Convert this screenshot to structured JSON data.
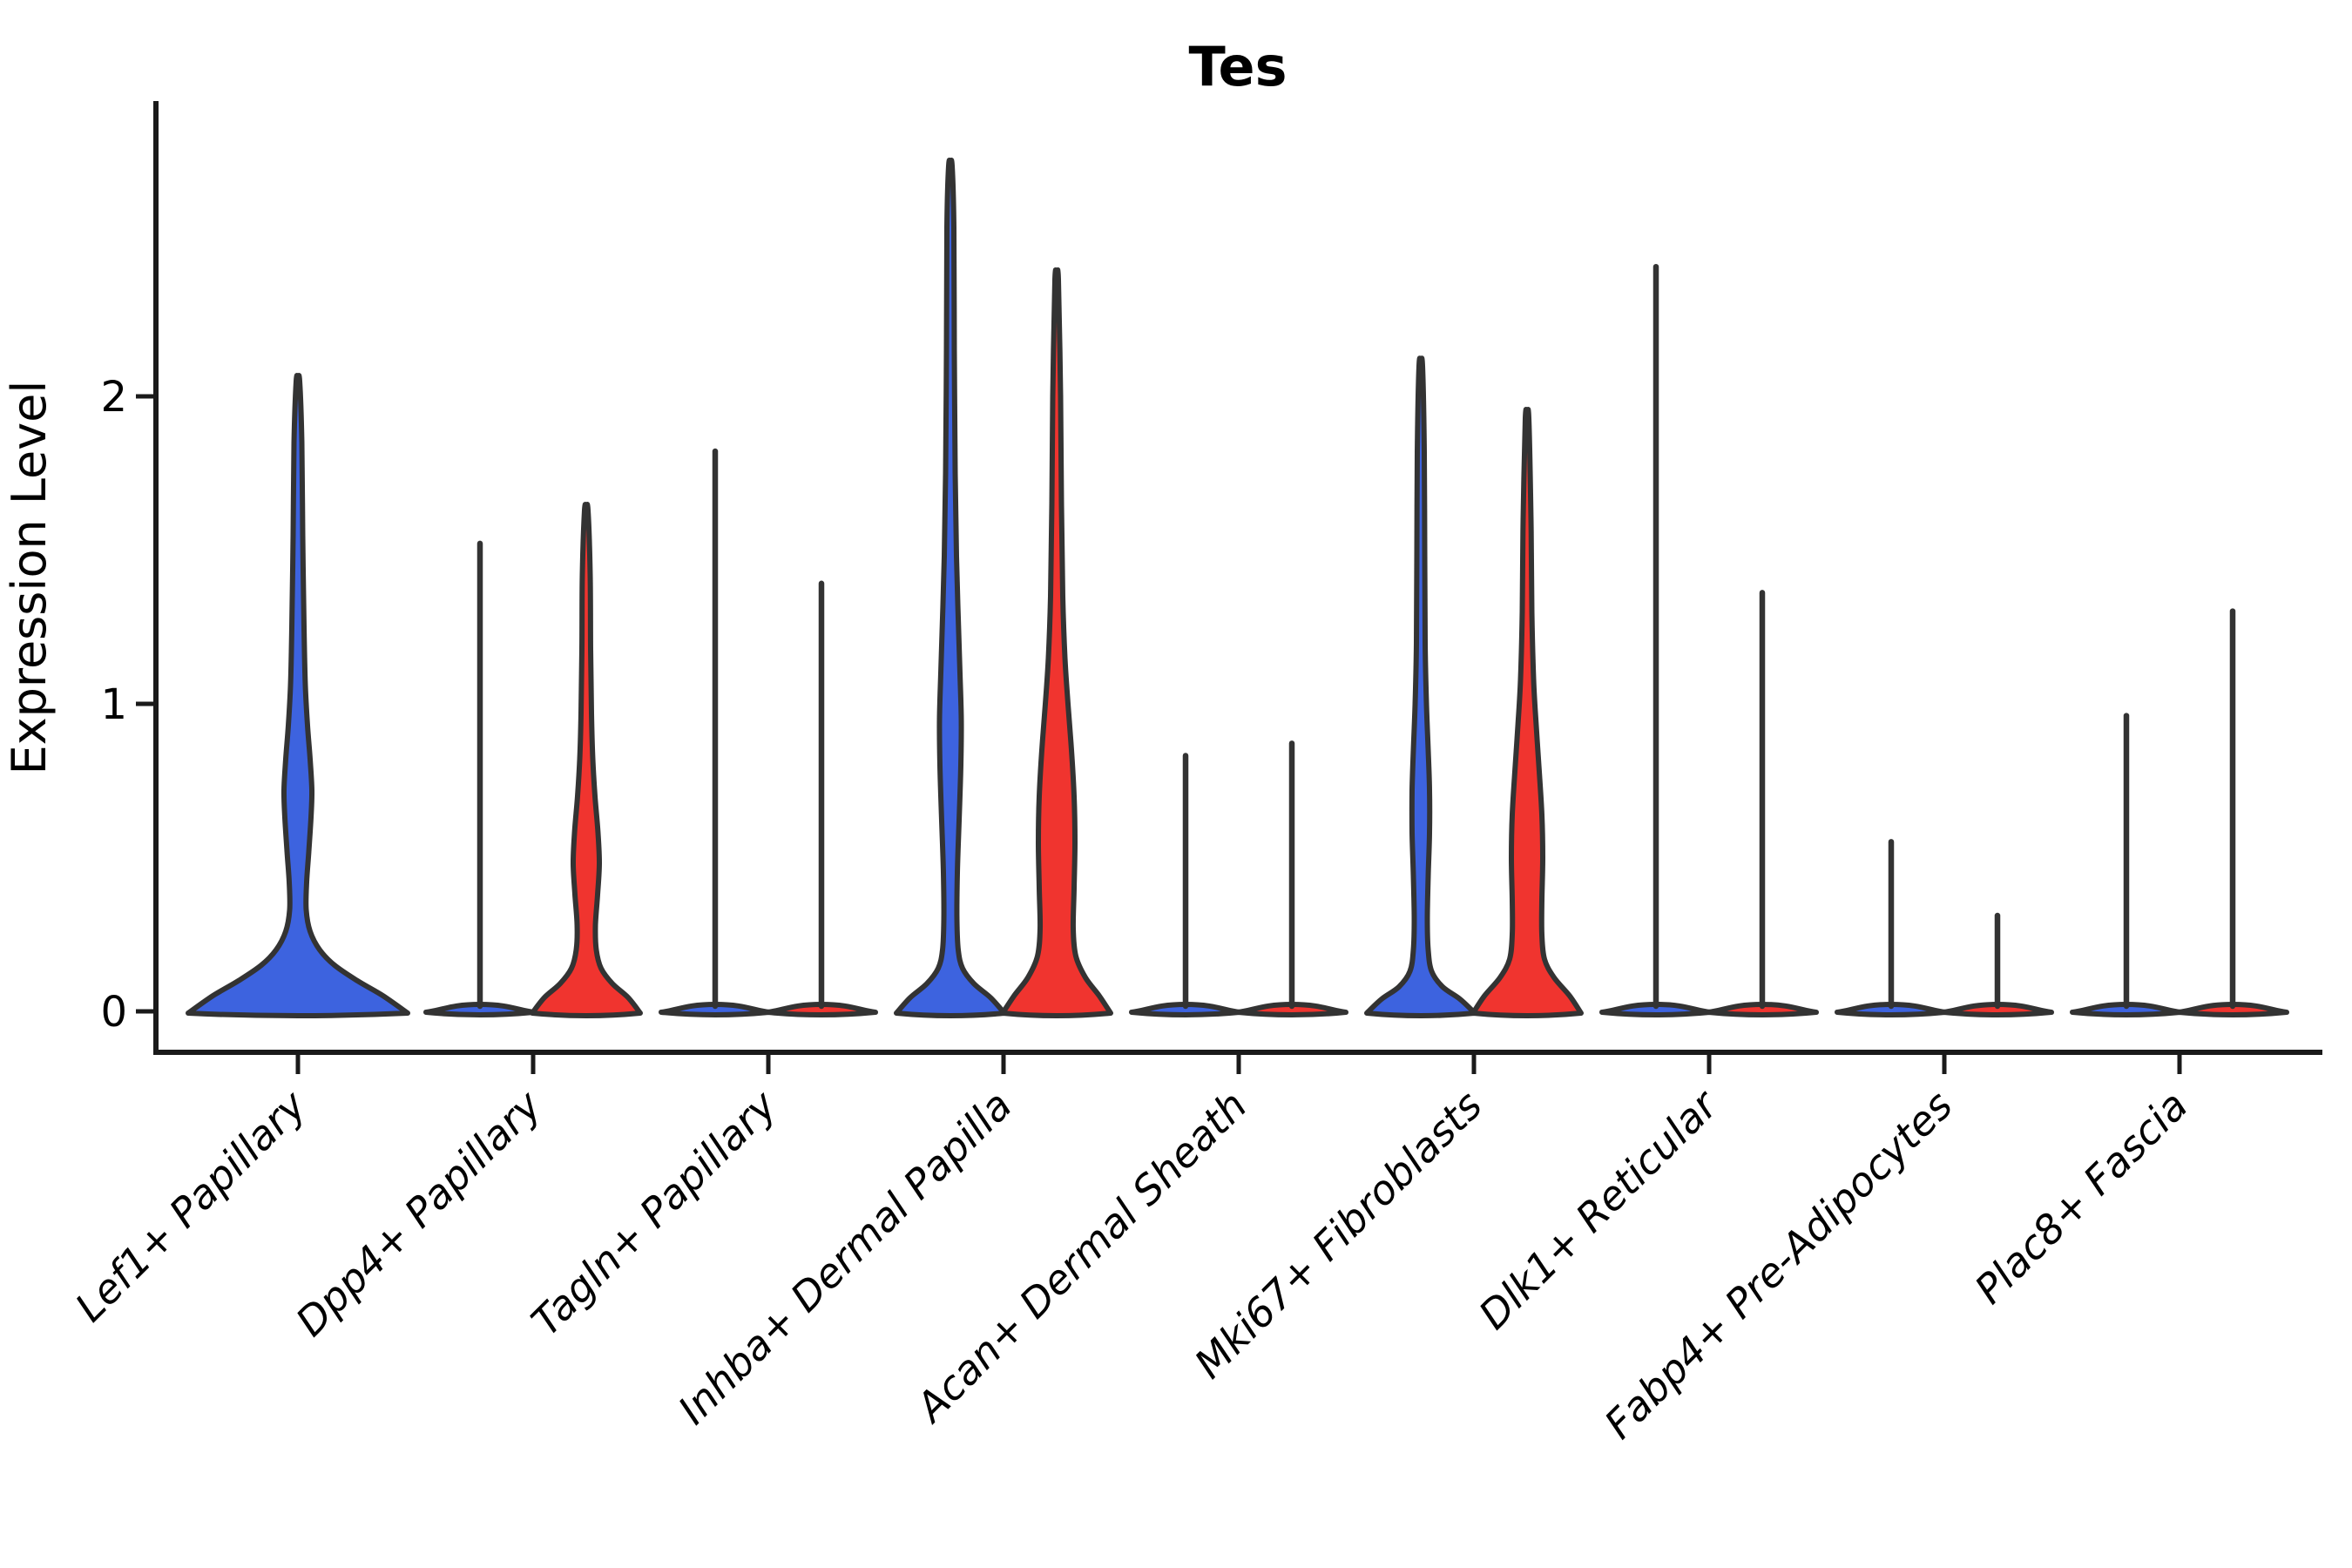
{
  "chart_data": {
    "type": "violin",
    "title": "Tes",
    "ylabel": "Expression Level",
    "xlabel": "",
    "yticks": [
      0,
      1,
      2
    ],
    "ytick_labels": [
      "0",
      "1",
      "2"
    ],
    "ylim": [
      -0.13,
      2.95
    ],
    "grid": false,
    "legend": "none",
    "categories": [
      "Lef1+ Papillary",
      "Dpp4+ Papillary",
      "Tagln+ Papillary",
      "Inhba+ Dermal Papilla",
      "Acan+ Dermal Sheath",
      "Mki67+ Fibroblasts",
      "Dlk1+ Reticular",
      "Fabp4+ Pre-Adipocytes",
      "Plac8+ Fascia"
    ],
    "series": [
      {
        "name": "blue",
        "color": "#3D63DF"
      },
      {
        "name": "red",
        "color": "#F0342F"
      }
    ],
    "outline_color": "#333333",
    "axis_color": "#1a1a1a",
    "violins": [
      {
        "category_index": 0,
        "group": "blue",
        "kind": "body",
        "solo": true,
        "peak": 2.05,
        "profile": [
          [
            0,
            126
          ],
          [
            0.05,
            98
          ],
          [
            0.1,
            68
          ],
          [
            0.15,
            42
          ],
          [
            0.2,
            25
          ],
          [
            0.26,
            14
          ],
          [
            0.33,
            9.5
          ],
          [
            0.42,
            10
          ],
          [
            0.52,
            12.5
          ],
          [
            0.63,
            15
          ],
          [
            0.72,
            16
          ],
          [
            0.82,
            14
          ],
          [
            0.93,
            11
          ],
          [
            1.06,
            8.5
          ],
          [
            1.25,
            7
          ],
          [
            1.55,
            5.5
          ],
          [
            1.85,
            4.5
          ],
          [
            2.05,
            2
          ]
        ]
      },
      {
        "category_index": 1,
        "group": "blue",
        "kind": "spike",
        "solo": false,
        "peak": 1.53
      },
      {
        "category_index": 1,
        "group": "red",
        "kind": "body",
        "solo": false,
        "peak": 1.63,
        "profile": [
          [
            0,
            62
          ],
          [
            0.045,
            48
          ],
          [
            0.09,
            30
          ],
          [
            0.14,
            17
          ],
          [
            0.2,
            11.5
          ],
          [
            0.28,
            10.5
          ],
          [
            0.38,
            13
          ],
          [
            0.48,
            15
          ],
          [
            0.58,
            13.5
          ],
          [
            0.7,
            10
          ],
          [
            0.82,
            7.5
          ],
          [
            0.97,
            6
          ],
          [
            1.18,
            5
          ],
          [
            1.42,
            4.5
          ],
          [
            1.63,
            2
          ]
        ]
      },
      {
        "category_index": 2,
        "group": "blue",
        "kind": "spike",
        "solo": false,
        "peak": 1.83
      },
      {
        "category_index": 2,
        "group": "red",
        "kind": "spike",
        "solo": false,
        "peak": 1.4
      },
      {
        "category_index": 3,
        "group": "blue",
        "kind": "body",
        "solo": false,
        "peak": 2.75,
        "profile": [
          [
            0,
            62
          ],
          [
            0.045,
            46
          ],
          [
            0.09,
            27
          ],
          [
            0.14,
            14
          ],
          [
            0.2,
            9
          ],
          [
            0.3,
            7.5
          ],
          [
            0.45,
            8
          ],
          [
            0.62,
            10
          ],
          [
            0.8,
            12
          ],
          [
            0.95,
            12.5
          ],
          [
            1.1,
            11
          ],
          [
            1.28,
            9
          ],
          [
            1.48,
            7
          ],
          [
            1.75,
            5.5
          ],
          [
            2.15,
            4.5
          ],
          [
            2.55,
            4
          ],
          [
            2.75,
            2
          ]
        ]
      },
      {
        "category_index": 3,
        "group": "red",
        "kind": "body",
        "solo": false,
        "peak": 2.38,
        "profile": [
          [
            0,
            62
          ],
          [
            0.05,
            49
          ],
          [
            0.11,
            33
          ],
          [
            0.18,
            22
          ],
          [
            0.27,
            19
          ],
          [
            0.4,
            20
          ],
          [
            0.55,
            21
          ],
          [
            0.7,
            20
          ],
          [
            0.85,
            17
          ],
          [
            1.0,
            13
          ],
          [
            1.15,
            9.5
          ],
          [
            1.35,
            7
          ],
          [
            1.65,
            5.5
          ],
          [
            2.0,
            4.5
          ],
          [
            2.38,
            2
          ]
        ]
      },
      {
        "category_index": 4,
        "group": "blue",
        "kind": "spike",
        "solo": false,
        "peak": 0.84
      },
      {
        "category_index": 4,
        "group": "red",
        "kind": "spike",
        "solo": false,
        "peak": 0.88
      },
      {
        "category_index": 5,
        "group": "blue",
        "kind": "body",
        "solo": false,
        "peak": 2.1,
        "profile": [
          [
            0,
            62
          ],
          [
            0.04,
            45
          ],
          [
            0.08,
            25
          ],
          [
            0.13,
            12.5
          ],
          [
            0.2,
            8.5
          ],
          [
            0.3,
            7.5
          ],
          [
            0.44,
            8.5
          ],
          [
            0.58,
            10
          ],
          [
            0.72,
            10
          ],
          [
            0.85,
            8.5
          ],
          [
            1.0,
            6.5
          ],
          [
            1.2,
            5
          ],
          [
            1.5,
            4.5
          ],
          [
            1.82,
            4
          ],
          [
            2.1,
            2
          ]
        ]
      },
      {
        "category_index": 5,
        "group": "red",
        "kind": "body",
        "solo": false,
        "peak": 1.93,
        "profile": [
          [
            0,
            62
          ],
          [
            0.05,
            49
          ],
          [
            0.11,
            31
          ],
          [
            0.17,
            20
          ],
          [
            0.25,
            17
          ],
          [
            0.36,
            17
          ],
          [
            0.5,
            18
          ],
          [
            0.64,
            17
          ],
          [
            0.78,
            14
          ],
          [
            0.93,
            10.5
          ],
          [
            1.08,
            7.5
          ],
          [
            1.3,
            5.5
          ],
          [
            1.6,
            4.5
          ],
          [
            1.93,
            2
          ]
        ]
      },
      {
        "category_index": 6,
        "group": "blue",
        "kind": "spike",
        "solo": false,
        "peak": 2.43
      },
      {
        "category_index": 6,
        "group": "red",
        "kind": "spike",
        "solo": false,
        "peak": 1.37
      },
      {
        "category_index": 7,
        "group": "blue",
        "kind": "spike",
        "solo": false,
        "peak": 0.56
      },
      {
        "category_index": 7,
        "group": "red",
        "kind": "spike",
        "solo": false,
        "peak": 0.32
      },
      {
        "category_index": 8,
        "group": "blue",
        "kind": "spike",
        "solo": false,
        "peak": 0.97
      },
      {
        "category_index": 8,
        "group": "red",
        "kind": "spike",
        "solo": false,
        "peak": 1.31
      }
    ]
  }
}
